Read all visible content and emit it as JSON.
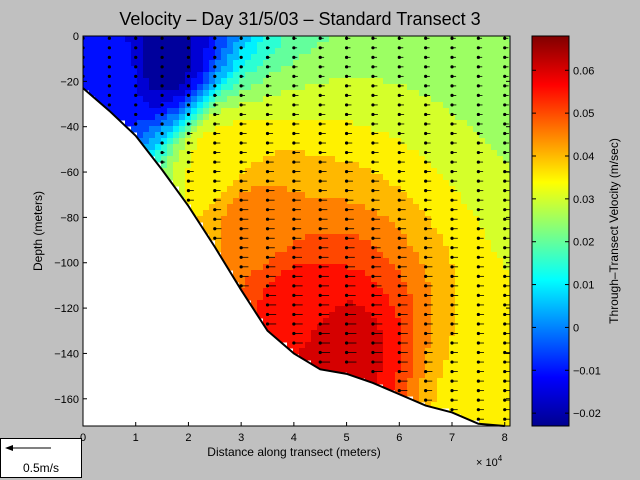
{
  "chart_data": {
    "type": "heatmap",
    "title": "Velocity – Day 31/5/03 – Standard Transect 3",
    "xlabel": "Distance along transect (meters)",
    "ylabel": "Depth (meters)",
    "x_multiplier_label": "× 10",
    "x_multiplier_exp": "4",
    "xlim": [
      0,
      8.1
    ],
    "ylim": [
      -172,
      0
    ],
    "x_ticks": [
      "0",
      "1",
      "2",
      "3",
      "4",
      "5",
      "6",
      "7",
      "8"
    ],
    "y_ticks": [
      "0",
      "−20",
      "−40",
      "−60",
      "−80",
      "−100",
      "−120",
      "−140",
      "−160"
    ],
    "colorbar": {
      "label": "Through–Transect Velocity (m/sec)",
      "range": [
        -0.023,
        0.068
      ],
      "ticks": [
        "0.06",
        "0.05",
        "0.04",
        "0.03",
        "0.02",
        "0.01",
        "0",
        "−0.01",
        "−0.02"
      ]
    },
    "bathymetry": {
      "x": [
        0,
        0.5,
        1.0,
        1.5,
        2.0,
        2.5,
        3.0,
        3.5,
        4.0,
        4.5,
        5.0,
        5.5,
        6.0,
        6.5,
        7.0,
        7.5,
        8.0
      ],
      "depth": [
        -23,
        -33,
        -44,
        -59,
        -75,
        -93,
        -112,
        -130,
        -140,
        -147,
        -149,
        -153,
        -158,
        -163,
        -166,
        -171,
        -172
      ]
    },
    "velocity_features": [
      {
        "x": 1.5,
        "depth": -10,
        "value": -0.022
      },
      {
        "x": 0.6,
        "depth": -15,
        "value": -0.01
      },
      {
        "x": 4.8,
        "depth": -140,
        "value": 0.062
      },
      {
        "x": 4.0,
        "depth": -120,
        "value": 0.055
      },
      {
        "x": 3.2,
        "depth": -80,
        "value": 0.045
      },
      {
        "x": 2.6,
        "depth": -55,
        "value": 0.035
      },
      {
        "x": 7.8,
        "depth": -165,
        "value": 0.035
      }
    ],
    "scale_arrow_label": "0.5m/s"
  }
}
